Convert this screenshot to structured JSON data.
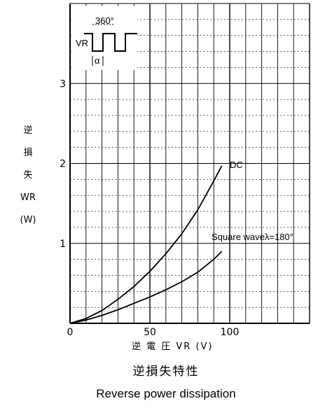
{
  "chart_data": {
    "type": "line",
    "title": "Reverse power dissipation",
    "title_jp": "逆損失特性",
    "xlabel": "逆 電 圧  VR (V)",
    "ylabel_lines": [
      "逆",
      "損",
      "失",
      "WR",
      "(W)"
    ],
    "xlim": [
      0,
      150
    ],
    "ylim": [
      0,
      4
    ],
    "x_ticks": [
      {
        "value": 0,
        "label": "0"
      },
      {
        "value": 50,
        "label": "50"
      },
      {
        "value": 100,
        "label": "100"
      }
    ],
    "y_ticks": [
      {
        "value": 1,
        "label": "1"
      },
      {
        "value": 2,
        "label": "2"
      },
      {
        "value": 3,
        "label": "3"
      }
    ],
    "grid": true,
    "series": [
      {
        "name": "DC",
        "x": [
          0,
          10,
          20,
          30,
          40,
          50,
          60,
          70,
          80,
          90,
          95
        ],
        "y": [
          0,
          0.06,
          0.16,
          0.3,
          0.46,
          0.65,
          0.87,
          1.12,
          1.42,
          1.78,
          1.97
        ]
      },
      {
        "name": "Square waveλ=180°",
        "x": [
          0,
          10,
          20,
          30,
          40,
          50,
          60,
          70,
          80,
          90,
          95
        ],
        "y": [
          0,
          0.04,
          0.1,
          0.17,
          0.25,
          0.33,
          0.42,
          0.52,
          0.64,
          0.8,
          0.9
        ]
      }
    ],
    "inset": {
      "period_label": "360°",
      "amplitude_label": "VR",
      "width_label": "α"
    },
    "line_color": "#000000"
  }
}
